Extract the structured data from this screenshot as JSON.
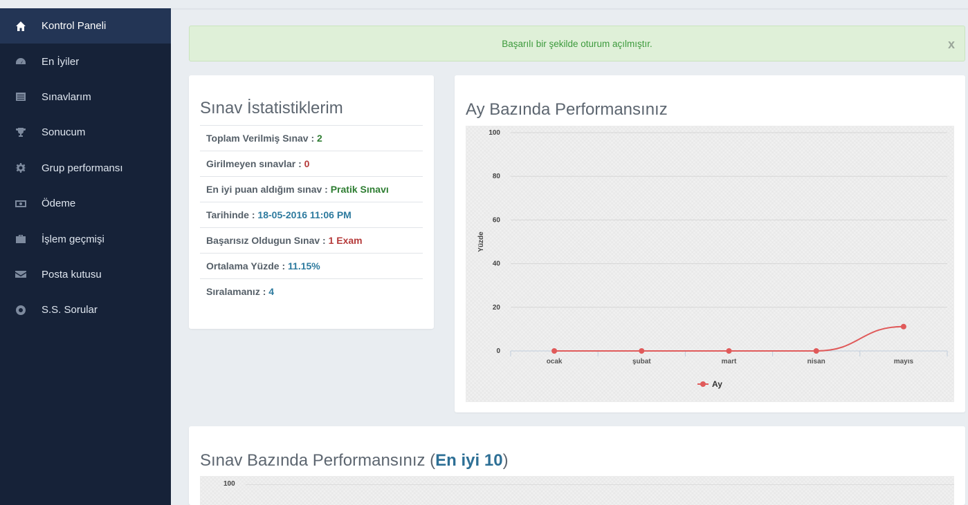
{
  "sidebar": {
    "items": [
      {
        "label": "Kontrol Paneli",
        "icon": "home-icon",
        "active": true
      },
      {
        "label": "En İyiler",
        "icon": "dashboard-icon"
      },
      {
        "label": "Sınavlarım",
        "icon": "list-icon"
      },
      {
        "label": "Sonucum",
        "icon": "trophy-icon"
      },
      {
        "label": "Grup performansı",
        "icon": "gear-icon"
      },
      {
        "label": "Ödeme",
        "icon": "money-icon"
      },
      {
        "label": "İşlem geçmişi",
        "icon": "briefcase-icon"
      },
      {
        "label": "Posta kutusu",
        "icon": "envelope-icon"
      },
      {
        "label": "S.S. Sorular",
        "icon": "lifebuoy-icon"
      }
    ]
  },
  "alert": {
    "message": "Başarılı bir şekilde oturum açılmıştır.",
    "close": "x"
  },
  "stats": {
    "title": "Sınav İstatistiklerim",
    "rows": [
      {
        "label": "Toplam Verilmiş Sınav : ",
        "value": "2"
      },
      {
        "label": "Girilmeyen sınavlar : ",
        "value": "0"
      },
      {
        "label": "En iyi puan aldığım sınav : ",
        "value": "Pratik Sınavı"
      },
      {
        "label": "Tarihinde : ",
        "value": "18-05-2016 11:06 PM"
      },
      {
        "label": "Başarısız Oldugun Sınav : ",
        "value": "1 Exam"
      },
      {
        "label": "Ortalama Yüzde : ",
        "value": "11.15%"
      },
      {
        "label": "Sıralamanız : ",
        "value": "4"
      }
    ]
  },
  "monthly": {
    "title": "Ay Bazında Performansınız"
  },
  "exam_perf": {
    "title_prefix": "Sınav Bazında Performansınız (",
    "title_highlight": "En iyi 10",
    "title_suffix": ")",
    "y_top_tick": "100"
  },
  "colors": {
    "sidebar_bg": "#162238",
    "sidebar_active": "#233555",
    "series": "#e05a5a",
    "success_text": "#3c9a3c"
  },
  "chart_data": {
    "type": "line",
    "title": "",
    "xlabel": "",
    "ylabel": "Yüzde",
    "categories": [
      "ocak",
      "şubat",
      "mart",
      "nisan",
      "mayıs"
    ],
    "series": [
      {
        "name": "Ay",
        "values": [
          0,
          0,
          0,
          0,
          11.15
        ]
      }
    ],
    "ylim": [
      0,
      100
    ],
    "yticks": [
      0,
      20,
      40,
      60,
      80,
      100
    ],
    "grid": true,
    "legend": "bottom-center"
  }
}
